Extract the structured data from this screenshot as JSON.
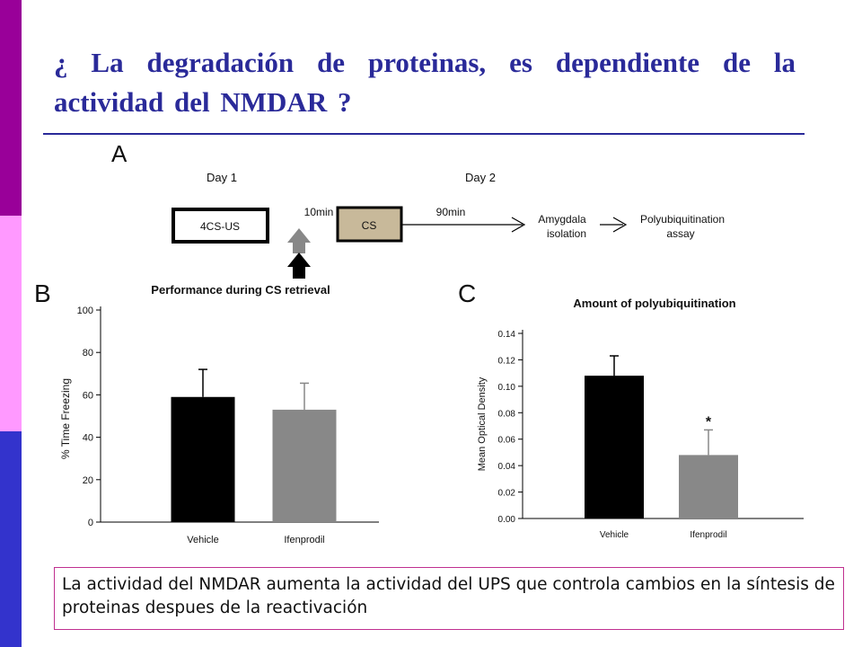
{
  "slide": {
    "title": "¿ La degradación de proteinas, es dependiente de la actividad del NMDAR ?",
    "caption": "La actividad del NMDAR aumenta la actividad del UPS que controla cambios en la síntesis de proteinas despues de la reactivación",
    "colors": {
      "title": "#2a2a99",
      "stripe_top": "#990099",
      "stripe_middle": "#ff99ff",
      "stripe_bottom": "#3333cc",
      "caption_border": "#c03090"
    }
  },
  "protocol": {
    "panel_letter": "A",
    "day1": "Day 1",
    "day2": "Day 2",
    "box1": "4CS-US",
    "interval1": "10min",
    "box2": "CS",
    "interval2": "90min",
    "step3_line1": "Amygdala",
    "step3_line2": "isolation",
    "step4_line1": "Polyubiquitination",
    "step4_line2": "assay",
    "injection_arrow_icon": "up-arrow-icon"
  },
  "chart_data": [
    {
      "panel_letter": "B",
      "type": "bar",
      "title": "Performance during CS retrieval",
      "xlabel": "",
      "ylabel": "% Time Freezing",
      "categories": [
        "Vehicle",
        "Ifenprodil"
      ],
      "values": [
        59,
        53
      ],
      "error": [
        13,
        12.5
      ],
      "colors": [
        "#000000",
        "#888888"
      ],
      "ylim": [
        0,
        100
      ],
      "yticks": [
        "0",
        "20",
        "40",
        "60",
        "80",
        "100"
      ],
      "grid": false
    },
    {
      "panel_letter": "C",
      "type": "bar",
      "title": "Amount of polyubiquitination",
      "xlabel": "",
      "ylabel": "Mean Optical Density",
      "categories": [
        "Vehicle",
        "Ifenprodil"
      ],
      "values": [
        0.108,
        0.048
      ],
      "error": [
        0.015,
        0.019
      ],
      "colors": [
        "#000000",
        "#888888"
      ],
      "significance": [
        "",
        "*"
      ],
      "ylim": [
        0,
        0.14
      ],
      "yticks": [
        "0.00",
        "0.02",
        "0.04",
        "0.06",
        "0.08",
        "0.10",
        "0.12",
        "0.14"
      ],
      "grid": false
    }
  ]
}
